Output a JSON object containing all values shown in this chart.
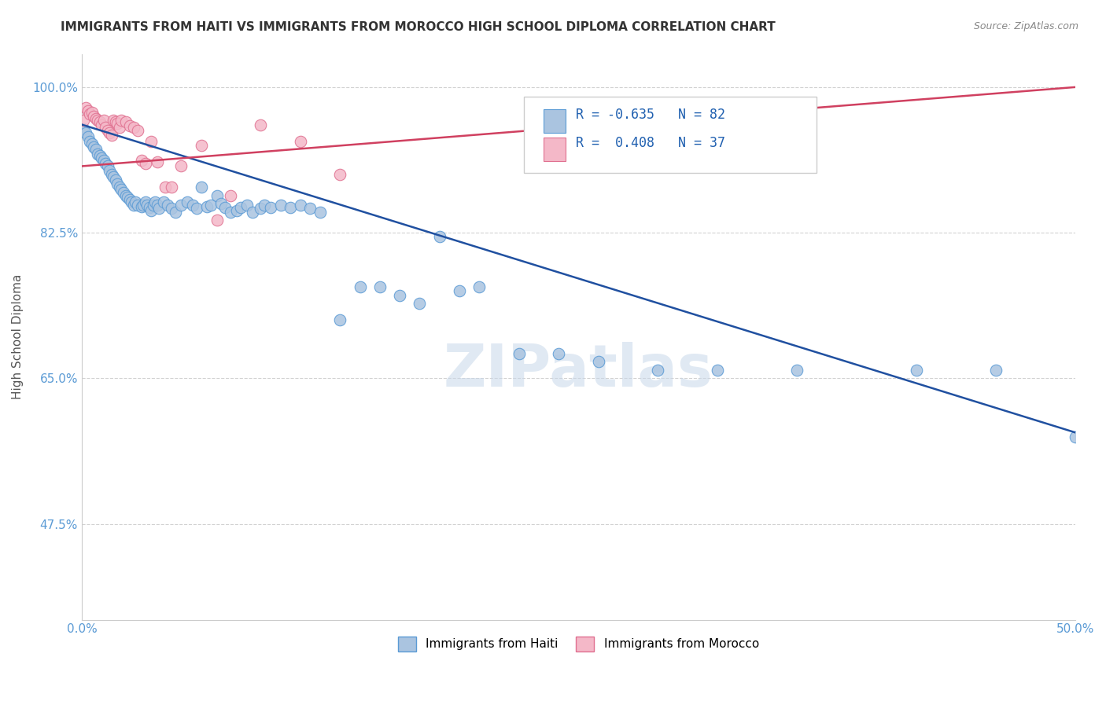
{
  "title": "IMMIGRANTS FROM HAITI VS IMMIGRANTS FROM MOROCCO HIGH SCHOOL DIPLOMA CORRELATION CHART",
  "source": "Source: ZipAtlas.com",
  "ylabel": "High School Diploma",
  "xlim": [
    0.0,
    0.5
  ],
  "ylim": [
    0.36,
    1.04
  ],
  "ytick_positions": [
    1.0,
    0.825,
    0.65,
    0.475
  ],
  "yticklabels": [
    "100.0%",
    "82.5%",
    "65.0%",
    "47.5%"
  ],
  "grid_color": "#cccccc",
  "background_color": "#ffffff",
  "haiti_color": "#aac4e0",
  "haiti_edge_color": "#5b9bd5",
  "morocco_color": "#f4b8c8",
  "morocco_edge_color": "#e07090",
  "haiti_line_color": "#2050a0",
  "morocco_line_color": "#d04060",
  "legend_haiti_label": "Immigrants from Haiti",
  "legend_morocco_label": "Immigrants from Morocco",
  "haiti_R": "-0.635",
  "haiti_N": "82",
  "morocco_R": "0.408",
  "morocco_N": "37",
  "watermark": "ZIPatlas",
  "haiti_line_x0": 0.0,
  "haiti_line_y0": 0.955,
  "haiti_line_x1": 0.5,
  "haiti_line_y1": 0.585,
  "morocco_line_x0": 0.0,
  "morocco_line_y0": 0.905,
  "morocco_line_x1": 0.5,
  "morocco_line_y1": 1.0,
  "haiti_scatter_x": [
    0.001,
    0.002,
    0.003,
    0.004,
    0.005,
    0.006,
    0.007,
    0.008,
    0.009,
    0.01,
    0.011,
    0.012,
    0.013,
    0.014,
    0.015,
    0.016,
    0.017,
    0.018,
    0.019,
    0.02,
    0.021,
    0.022,
    0.023,
    0.024,
    0.025,
    0.026,
    0.027,
    0.028,
    0.03,
    0.031,
    0.032,
    0.033,
    0.034,
    0.035,
    0.036,
    0.037,
    0.038,
    0.039,
    0.041,
    0.043,
    0.045,
    0.047,
    0.05,
    0.053,
    0.056,
    0.058,
    0.06,
    0.063,
    0.065,
    0.068,
    0.07,
    0.072,
    0.075,
    0.078,
    0.08,
    0.083,
    0.086,
    0.09,
    0.092,
    0.095,
    0.1,
    0.105,
    0.11,
    0.115,
    0.12,
    0.13,
    0.14,
    0.15,
    0.16,
    0.17,
    0.18,
    0.19,
    0.2,
    0.22,
    0.24,
    0.26,
    0.29,
    0.32,
    0.36,
    0.42,
    0.46,
    0.5
  ],
  "haiti_scatter_y": [
    0.95,
    0.945,
    0.94,
    0.935,
    0.932,
    0.928,
    0.925,
    0.92,
    0.918,
    0.915,
    0.912,
    0.908,
    0.905,
    0.9,
    0.895,
    0.892,
    0.888,
    0.884,
    0.88,
    0.877,
    0.873,
    0.87,
    0.868,
    0.865,
    0.862,
    0.858,
    0.862,
    0.858,
    0.856,
    0.858,
    0.862,
    0.858,
    0.855,
    0.852,
    0.858,
    0.862,
    0.858,
    0.854,
    0.862,
    0.858,
    0.854,
    0.85,
    0.858,
    0.862,
    0.858,
    0.854,
    0.88,
    0.856,
    0.858,
    0.87,
    0.86,
    0.855,
    0.85,
    0.852,
    0.855,
    0.858,
    0.85,
    0.854,
    0.858,
    0.855,
    0.858,
    0.855,
    0.858,
    0.854,
    0.85,
    0.72,
    0.76,
    0.76,
    0.75,
    0.74,
    0.82,
    0.755,
    0.76,
    0.68,
    0.68,
    0.67,
    0.66,
    0.66,
    0.66,
    0.66,
    0.66,
    0.58
  ],
  "morocco_scatter_x": [
    0.001,
    0.002,
    0.003,
    0.004,
    0.005,
    0.006,
    0.007,
    0.008,
    0.009,
    0.01,
    0.011,
    0.012,
    0.013,
    0.014,
    0.015,
    0.016,
    0.017,
    0.018,
    0.019,
    0.02,
    0.022,
    0.024,
    0.026,
    0.028,
    0.03,
    0.032,
    0.035,
    0.038,
    0.042,
    0.045,
    0.05,
    0.06,
    0.068,
    0.075,
    0.09,
    0.11,
    0.13
  ],
  "morocco_scatter_y": [
    0.96,
    0.975,
    0.972,
    0.968,
    0.97,
    0.965,
    0.962,
    0.96,
    0.958,
    0.955,
    0.96,
    0.952,
    0.948,
    0.945,
    0.942,
    0.96,
    0.958,
    0.956,
    0.952,
    0.96,
    0.958,
    0.954,
    0.952,
    0.948,
    0.912,
    0.908,
    0.935,
    0.91,
    0.88,
    0.88,
    0.905,
    0.93,
    0.84,
    0.87,
    0.955,
    0.935,
    0.895
  ]
}
